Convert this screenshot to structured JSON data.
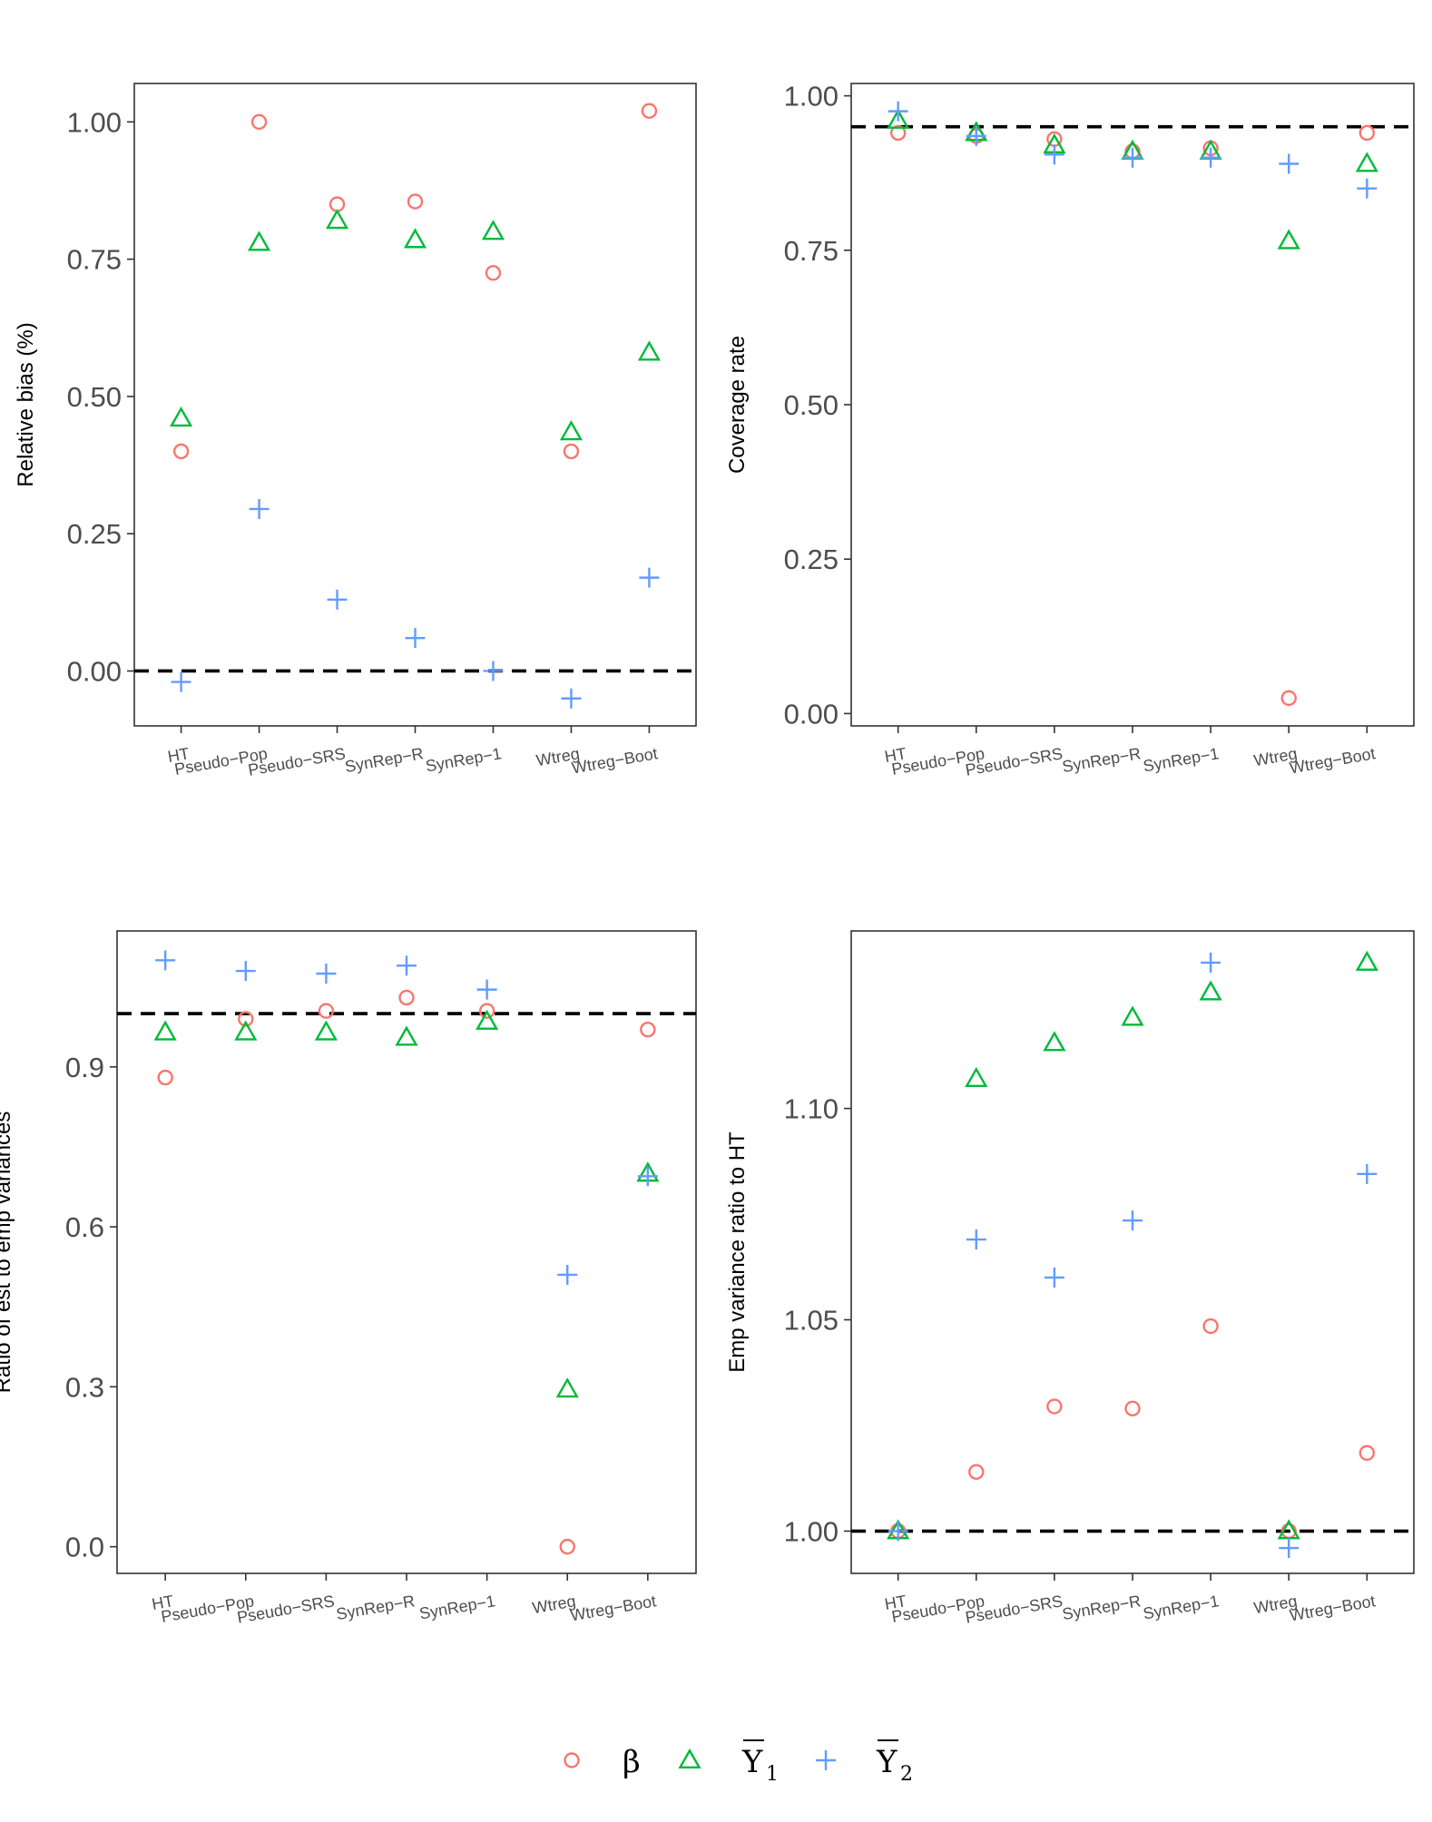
{
  "colors": {
    "beta": "#F8766D",
    "y1": "#00BA38",
    "y2": "#619CFF",
    "axis": "#333333",
    "ref": "#000000"
  },
  "legend": {
    "items": [
      {
        "key": "beta",
        "label": "β",
        "shape": "circle-icon"
      },
      {
        "key": "y1",
        "label": "Y",
        "sub": "1",
        "shape": "triangle-icon"
      },
      {
        "key": "y2",
        "label": "Y",
        "sub": "2",
        "shape": "plus-icon"
      }
    ]
  },
  "chart_data": [
    {
      "type": "scatter",
      "ylabel": "Relative bias (%)",
      "categories": [
        "HT",
        "Pseudo−Pop",
        "Pseudo−SRS",
        "SynRep−R",
        "SynRep−1",
        "Wtreg",
        "Wtreg−Boot"
      ],
      "yticks": [
        0.0,
        0.25,
        0.5,
        0.75,
        1.0
      ],
      "ytick_labels": [
        "0.00",
        "0.25",
        "0.50",
        "0.75",
        "1.00"
      ],
      "ylim": [
        -0.1,
        1.07
      ],
      "hline": 0.0,
      "series": [
        {
          "name": "beta",
          "values": [
            0.4,
            1.0,
            0.85,
            0.855,
            0.725,
            0.4,
            1.02
          ]
        },
        {
          "name": "y1",
          "values": [
            0.46,
            0.78,
            0.82,
            0.785,
            0.8,
            0.435,
            0.58
          ]
        },
        {
          "name": "y2",
          "values": [
            -0.02,
            0.295,
            0.13,
            0.06,
            0.0,
            -0.05,
            0.17
          ]
        }
      ]
    },
    {
      "type": "scatter",
      "ylabel": "Coverage rate",
      "categories": [
        "HT",
        "Pseudo−Pop",
        "Pseudo−SRS",
        "SynRep−R",
        "SynRep−1",
        "Wtreg",
        "Wtreg−Boot"
      ],
      "yticks": [
        0.0,
        0.25,
        0.5,
        0.75,
        1.0
      ],
      "ytick_labels": [
        "0.00",
        "0.25",
        "0.50",
        "0.75",
        "1.00"
      ],
      "ylim": [
        -0.02,
        1.02
      ],
      "hline": 0.95,
      "series": [
        {
          "name": "beta",
          "values": [
            0.94,
            0.935,
            0.93,
            0.91,
            0.915,
            0.025,
            0.94
          ]
        },
        {
          "name": "y1",
          "values": [
            0.96,
            0.94,
            0.92,
            0.91,
            0.91,
            0.765,
            0.89
          ]
        },
        {
          "name": "y2",
          "values": [
            0.975,
            0.935,
            0.905,
            0.9,
            0.9,
            0.89,
            0.85
          ]
        }
      ]
    },
    {
      "type": "scatter",
      "ylabel": "Ratio of est to emp variances",
      "categories": [
        "HT",
        "Pseudo−Pop",
        "Pseudo−SRS",
        "SynRep−R",
        "SynRep−1",
        "Wtreg",
        "Wtreg−Boot"
      ],
      "yticks": [
        0.0,
        0.3,
        0.6,
        0.9
      ],
      "ytick_labels": [
        "0.0",
        "0.3",
        "0.6",
        "0.9"
      ],
      "ylim": [
        -0.05,
        1.155
      ],
      "hline": 1.0,
      "series": [
        {
          "name": "beta",
          "values": [
            0.88,
            0.99,
            1.005,
            1.03,
            1.005,
            0.0,
            0.97
          ]
        },
        {
          "name": "y1",
          "values": [
            0.965,
            0.965,
            0.965,
            0.955,
            0.985,
            0.295,
            0.7
          ]
        },
        {
          "name": "y2",
          "values": [
            1.1,
            1.08,
            1.075,
            1.09,
            1.045,
            0.51,
            0.695
          ]
        }
      ]
    },
    {
      "type": "scatter",
      "ylabel": "Emp variance ratio to HT",
      "categories": [
        "HT",
        "Pseudo−Pop",
        "Pseudo−SRS",
        "SynRep−R",
        "SynRep−1",
        "Wtreg",
        "Wtreg−Boot"
      ],
      "yticks": [
        1.0,
        1.05,
        1.1
      ],
      "ytick_labels": [
        "1.00",
        "1.05",
        "1.10"
      ],
      "ylim": [
        0.99,
        1.142
      ],
      "hline": 1.0,
      "series": [
        {
          "name": "beta",
          "values": [
            1.0,
            1.014,
            1.0295,
            1.029,
            1.0485,
            1.0,
            1.0185
          ]
        },
        {
          "name": "y1",
          "values": [
            1.0,
            1.107,
            1.1155,
            1.1215,
            1.1275,
            1.0,
            1.1345
          ]
        },
        {
          "name": "y2",
          "values": [
            1.0,
            1.069,
            1.06,
            1.0735,
            1.1345,
            0.996,
            1.0845
          ]
        }
      ]
    }
  ]
}
